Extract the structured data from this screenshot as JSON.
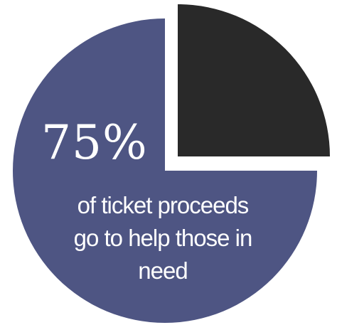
{
  "chart_data": {
    "type": "pie",
    "slices": [
      {
        "label": "help those in need",
        "value": 75,
        "color": "#4e5583"
      },
      {
        "label": "",
        "value": 25,
        "color": "#292929",
        "exploded": true
      }
    ],
    "annotation": {
      "value_text": "75%",
      "caption": "of ticket proceeds go to help those in need"
    },
    "legend": "none",
    "grid": false
  }
}
